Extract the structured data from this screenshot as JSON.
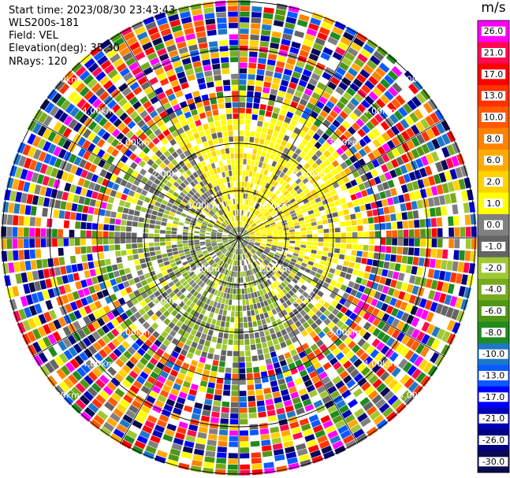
{
  "header": {
    "start_time": "Start time: 2023/08/30 23:43:43",
    "instrument": "WLS200s-181",
    "field": "Field: VEL",
    "elevation": "Elevation(deg): 35.30",
    "nrays": "NRays: 120"
  },
  "colorbar": {
    "unit": "m/s",
    "levels": [
      {
        "label": "26.0",
        "color": "#ff00ff"
      },
      {
        "label": "21.0",
        "color": "#ff0a50"
      },
      {
        "label": "17.0",
        "color": "#ff0000"
      },
      {
        "label": "13.0",
        "color": "#ff3200"
      },
      {
        "label": "10.0",
        "color": "#ff5a00"
      },
      {
        "label": "8.0",
        "color": "#ff8200"
      },
      {
        "label": "6.0",
        "color": "#ffaa00"
      },
      {
        "label": "2.0",
        "color": "#ffd200"
      },
      {
        "label": "1.0",
        "color": "#ffff00"
      },
      {
        "label": "0.0",
        "color": "#808080"
      },
      {
        "label": "-1.0",
        "color": "#646464"
      },
      {
        "label": "-2.0",
        "color": "#a0c832"
      },
      {
        "label": "-4.0",
        "color": "#78aa1e"
      },
      {
        "label": "-6.0",
        "color": "#509614"
      },
      {
        "label": "-8.0",
        "color": "#1e8c1e"
      },
      {
        "label": "-10.0",
        "color": "#1e78c8"
      },
      {
        "label": "-13.0",
        "color": "#0a5aff"
      },
      {
        "label": "-17.0",
        "color": "#0000ff"
      },
      {
        "label": "-21.0",
        "color": "#0000b4"
      },
      {
        "label": "-26.0",
        "color": "#000082"
      },
      {
        "label": "-30.0",
        "color": "#0a0a50"
      }
    ]
  },
  "range_rings": {
    "labels": [
      "1.00km",
      "2.00km",
      "3.00km",
      "4.00km",
      "5.00km"
    ],
    "ring_color": "#000000"
  },
  "chart_data": {
    "type": "heatmap",
    "projection": "polar PPI",
    "field": "VEL",
    "nrays": 120,
    "elevation_deg": 35.3,
    "max_range_km": 5.0,
    "range_rings_km": [
      1,
      2,
      3,
      4,
      5
    ],
    "spokes_deg": [
      0,
      30,
      60,
      90,
      120,
      150,
      180,
      210,
      240,
      270,
      300,
      330
    ],
    "value_range": [
      -30,
      30
    ],
    "near_field_pattern": {
      "toward_north": "yellow 1.0 to 2.0 m/s",
      "toward_east": "yellow 1.0 to 2.0 m/s",
      "toward_south": "mixed grey and yellow",
      "toward_west": "green -1.0 to -4.0 m/s with grey"
    },
    "far_field_pattern": "noisy, full velocity range",
    "clean_radius_km": 2.7
  }
}
